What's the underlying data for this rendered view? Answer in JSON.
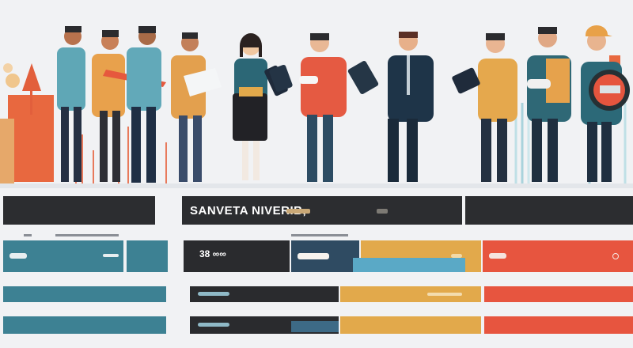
{
  "banner": {
    "title": "SANVETA NIVERIB,",
    "code": "38 ∞∞"
  },
  "colors": {
    "dark": "#2c2d30",
    "teal": "#3f7f8f",
    "amber": "#e2a94b",
    "coral": "#e7553f",
    "navy": "#21384f"
  },
  "illustration": {
    "people_count": 11,
    "icons": [
      "document-icon",
      "tablet-icon",
      "clipboard-icon",
      "monitor-icon"
    ]
  }
}
